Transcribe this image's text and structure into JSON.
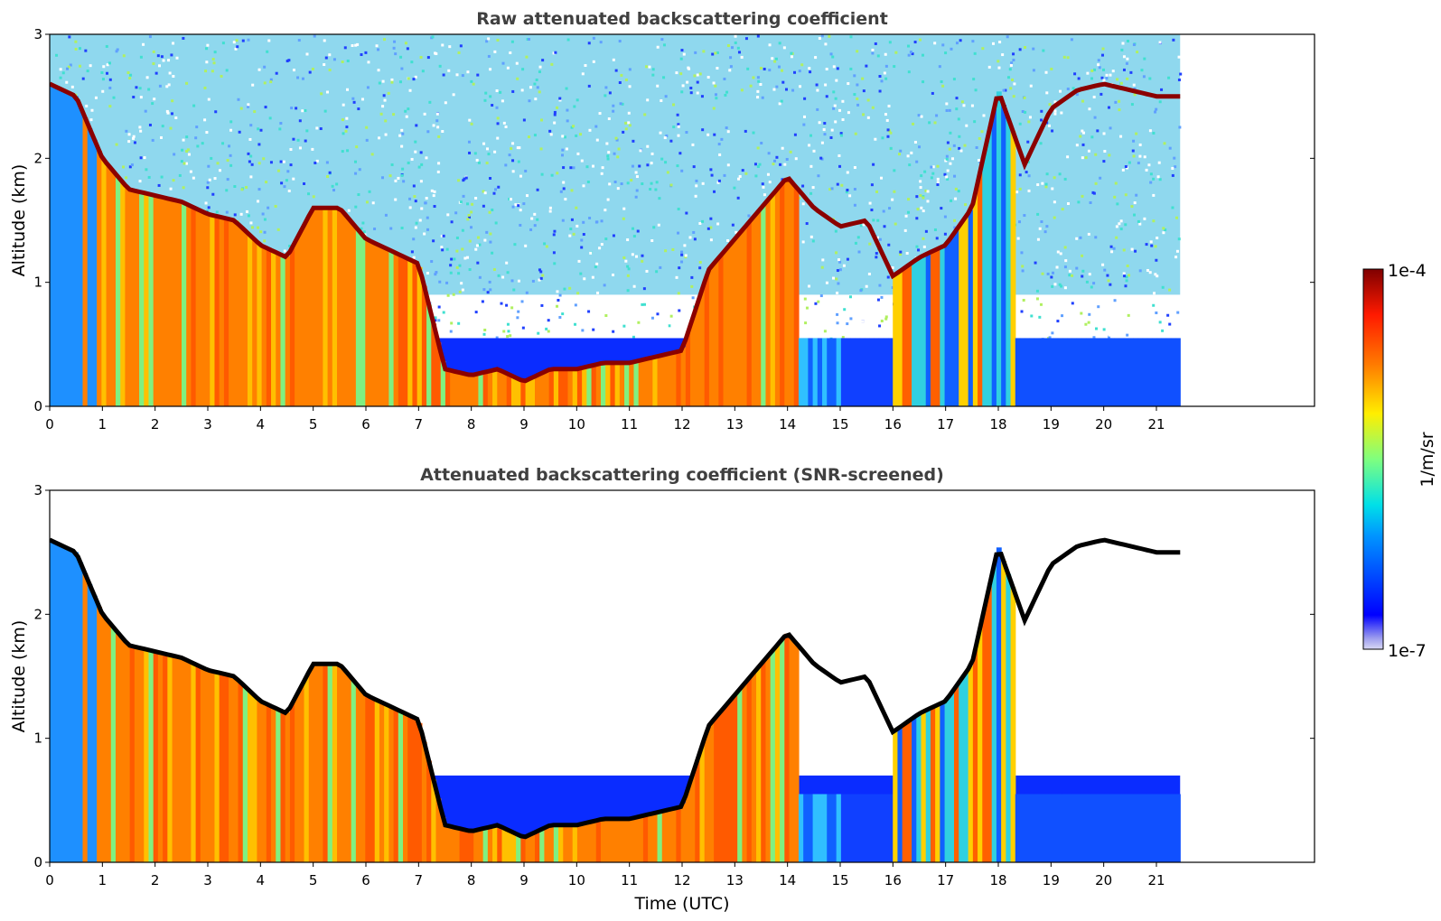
{
  "figure": {
    "colorbar": {
      "max_label": "1e-4",
      "min_label": "1e-7",
      "unit_label": "1/m/sr",
      "colormap": "jet",
      "scale": "log"
    }
  },
  "chart_data": [
    {
      "type": "heatmap",
      "title": "Raw attenuated backscattering coefficient",
      "xlabel": "",
      "ylabel": "Altitude (km)",
      "xlim": [
        0,
        24
      ],
      "ylim": [
        0,
        3
      ],
      "x_ticks": [
        "0",
        "1",
        "2",
        "3",
        "4",
        "5",
        "6",
        "7",
        "8",
        "9",
        "10",
        "11",
        "12",
        "13",
        "14",
        "15",
        "16",
        "17",
        "18",
        "19",
        "20",
        "21"
      ],
      "y_ticks": [
        "0",
        "1",
        "2",
        "3"
      ],
      "data_extent_hours": [
        0,
        21.45
      ],
      "snr_screened": false,
      "cloud_base_km": [
        [
          0.0,
          2.6
        ],
        [
          0.5,
          2.5
        ],
        [
          1.0,
          2.0
        ],
        [
          1.5,
          1.75
        ],
        [
          2.0,
          1.7
        ],
        [
          2.5,
          1.65
        ],
        [
          3.0,
          1.55
        ],
        [
          3.5,
          1.5
        ],
        [
          4.0,
          1.3
        ],
        [
          4.5,
          1.2
        ],
        [
          5.0,
          1.6
        ],
        [
          5.5,
          1.6
        ],
        [
          6.0,
          1.35
        ],
        [
          6.5,
          1.25
        ],
        [
          7.0,
          1.15
        ],
        [
          7.5,
          0.3
        ],
        [
          8.0,
          0.25
        ],
        [
          8.5,
          0.3
        ],
        [
          9.0,
          0.2
        ],
        [
          9.5,
          0.3
        ],
        [
          10.0,
          0.3
        ],
        [
          10.5,
          0.35
        ],
        [
          11.0,
          0.35
        ],
        [
          11.5,
          0.4
        ],
        [
          12.0,
          0.45
        ],
        [
          12.5,
          1.1
        ],
        [
          13.0,
          1.35
        ],
        [
          13.5,
          1.6
        ],
        [
          14.0,
          1.85
        ],
        [
          14.5,
          1.6
        ],
        [
          15.0,
          1.45
        ],
        [
          15.5,
          1.5
        ],
        [
          16.0,
          1.05
        ],
        [
          16.5,
          1.2
        ],
        [
          17.0,
          1.3
        ],
        [
          17.5,
          1.6
        ],
        [
          18.0,
          2.55
        ],
        [
          18.5,
          1.95
        ],
        [
          19.0,
          2.4
        ],
        [
          19.5,
          2.55
        ],
        [
          20.0,
          2.6
        ],
        [
          20.5,
          2.55
        ],
        [
          21.0,
          2.5
        ]
      ]
    },
    {
      "type": "heatmap",
      "title": "Attenuated backscattering coefficient (SNR-screened)",
      "xlabel": "Time (UTC)",
      "ylabel": "Altitude (km)",
      "xlim": [
        0,
        24
      ],
      "ylim": [
        0,
        3
      ],
      "x_ticks": [
        "0",
        "1",
        "2",
        "3",
        "4",
        "5",
        "6",
        "7",
        "8",
        "9",
        "10",
        "11",
        "12",
        "13",
        "14",
        "15",
        "16",
        "17",
        "18",
        "19",
        "20",
        "21"
      ],
      "y_ticks": [
        "0",
        "1",
        "2",
        "3"
      ],
      "data_extent_hours": [
        0,
        21.45
      ],
      "snr_screened": true,
      "cloud_base_km": [
        [
          0.0,
          2.6
        ],
        [
          0.5,
          2.5
        ],
        [
          1.0,
          2.0
        ],
        [
          1.5,
          1.75
        ],
        [
          2.0,
          1.7
        ],
        [
          2.5,
          1.65
        ],
        [
          3.0,
          1.55
        ],
        [
          3.5,
          1.5
        ],
        [
          4.0,
          1.3
        ],
        [
          4.5,
          1.2
        ],
        [
          5.0,
          1.6
        ],
        [
          5.5,
          1.6
        ],
        [
          6.0,
          1.35
        ],
        [
          6.5,
          1.25
        ],
        [
          7.0,
          1.15
        ],
        [
          7.5,
          0.3
        ],
        [
          8.0,
          0.25
        ],
        [
          8.5,
          0.3
        ],
        [
          9.0,
          0.2
        ],
        [
          9.5,
          0.3
        ],
        [
          10.0,
          0.3
        ],
        [
          10.5,
          0.35
        ],
        [
          11.0,
          0.35
        ],
        [
          11.5,
          0.4
        ],
        [
          12.0,
          0.45
        ],
        [
          12.5,
          1.1
        ],
        [
          13.0,
          1.35
        ],
        [
          13.5,
          1.6
        ],
        [
          14.0,
          1.85
        ],
        [
          14.5,
          1.6
        ],
        [
          15.0,
          1.45
        ],
        [
          15.5,
          1.5
        ],
        [
          16.0,
          1.05
        ],
        [
          16.5,
          1.2
        ],
        [
          17.0,
          1.3
        ],
        [
          17.5,
          1.6
        ],
        [
          18.0,
          2.55
        ],
        [
          18.5,
          1.95
        ],
        [
          19.0,
          2.4
        ],
        [
          19.5,
          2.55
        ],
        [
          20.0,
          2.6
        ],
        [
          20.5,
          2.55
        ],
        [
          21.0,
          2.5
        ]
      ]
    }
  ]
}
